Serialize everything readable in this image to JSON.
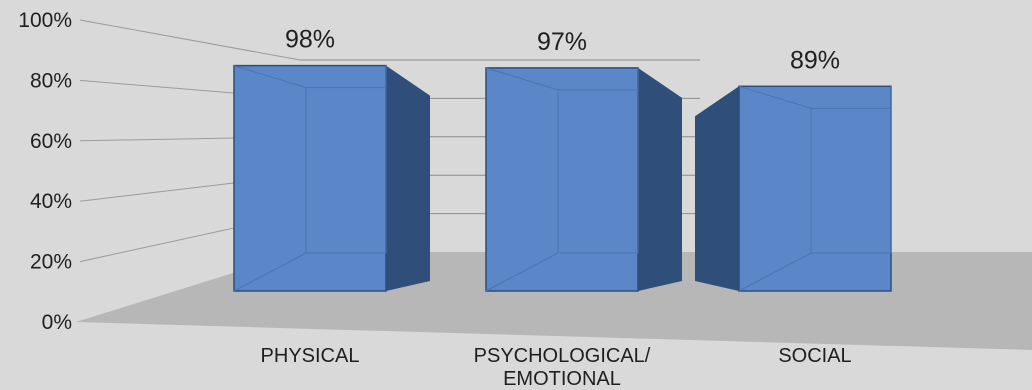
{
  "chart_data": {
    "type": "bar",
    "categories": [
      "PHYSICAL",
      "PSYCHOLOGICAL/\nEMOTIONAL",
      "SOCIAL"
    ],
    "values": [
      98,
      97,
      89
    ],
    "data_labels": [
      "98%",
      "97%",
      "89%"
    ],
    "yticks": [
      "0%",
      "20%",
      "40%",
      "60%",
      "80%",
      "100%"
    ],
    "ylim": [
      0,
      100
    ],
    "grid": true,
    "legend": "none"
  },
  "colors": {
    "background": "#d9d9d9",
    "floor": "#b7b7b7",
    "bar_front": "#5b87c8",
    "bar_side": "#2f4f7a",
    "bar_top": "#7ea3d8",
    "gridline": "#9a9a9a"
  }
}
